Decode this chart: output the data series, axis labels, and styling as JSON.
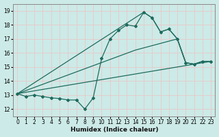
{
  "xlabel": "Humidex (Indice chaleur)",
  "ylabel": "",
  "bg_color": "#cceae7",
  "grid_color": "#e8c8c8",
  "line_color": "#1e6b5e",
  "xlim": [
    -0.5,
    23.5
  ],
  "ylim": [
    11.5,
    19.5
  ],
  "xticks": [
    0,
    1,
    2,
    3,
    4,
    5,
    6,
    7,
    8,
    9,
    10,
    11,
    12,
    13,
    14,
    15,
    16,
    17,
    18,
    19,
    20,
    21,
    22,
    23
  ],
  "yticks": [
    12,
    13,
    14,
    15,
    16,
    17,
    18,
    19
  ],
  "figsize": [
    3.2,
    2.0
  ],
  "dpi": 100,
  "lines": [
    {
      "x": [
        0,
        1,
        2,
        3,
        4,
        5,
        6,
        7,
        8,
        9,
        10,
        11,
        12,
        13,
        14,
        15,
        16,
        17,
        18,
        19,
        20,
        21,
        22,
        23
      ],
      "y": [
        13.1,
        12.9,
        13.0,
        12.9,
        12.8,
        12.75,
        12.65,
        12.65,
        12.0,
        12.8,
        15.6,
        17.0,
        17.6,
        18.0,
        17.9,
        18.9,
        18.5,
        17.5,
        17.7,
        17.0,
        15.3,
        15.2,
        15.4,
        15.4
      ],
      "marker": "D",
      "markersize": 2.0,
      "linewidth": 0.9
    },
    {
      "x": [
        0,
        15,
        16,
        17,
        18,
        19,
        20,
        21,
        22,
        23
      ],
      "y": [
        13.1,
        18.9,
        18.5,
        17.5,
        17.7,
        17.0,
        15.3,
        15.2,
        15.4,
        15.4
      ],
      "marker": null,
      "markersize": 0,
      "linewidth": 0.9
    },
    {
      "x": [
        0,
        14,
        19,
        20,
        21,
        22,
        23
      ],
      "y": [
        13.1,
        16.2,
        17.0,
        15.3,
        15.2,
        15.4,
        15.4
      ],
      "marker": null,
      "markersize": 0,
      "linewidth": 0.9
    },
    {
      "x": [
        0,
        23
      ],
      "y": [
        13.1,
        15.4
      ],
      "marker": null,
      "markersize": 0,
      "linewidth": 0.9
    }
  ]
}
